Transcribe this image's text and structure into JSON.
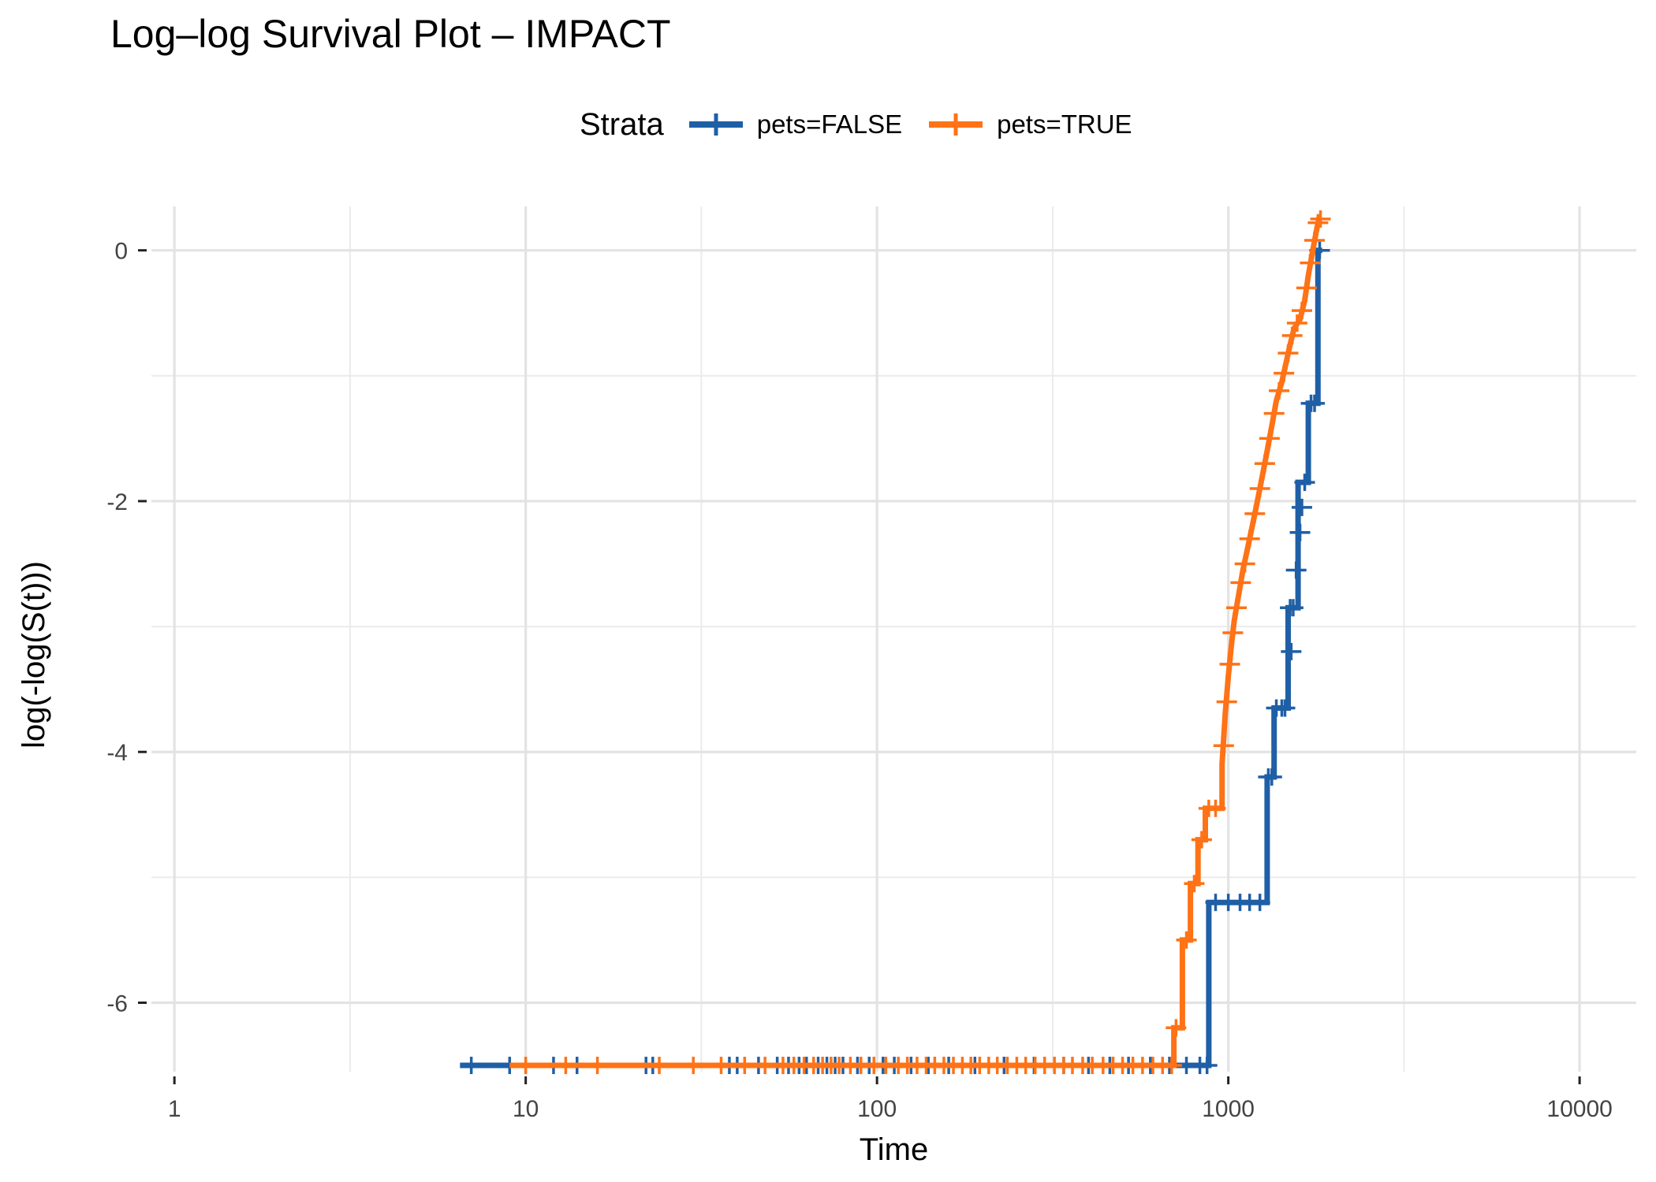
{
  "chart_data": {
    "type": "line",
    "title": "Log–log Survival Plot – IMPACT",
    "xlabel": "Time",
    "ylabel": "log(-log(S(t)))",
    "x_scale": "log10",
    "xlim": [
      0.86,
      14500
    ],
    "ylim": [
      -6.55,
      0.35
    ],
    "x_ticks": [
      1,
      10,
      100,
      1000,
      10000
    ],
    "x_tick_labels": [
      "1",
      "10",
      "100",
      "1000",
      "10000"
    ],
    "y_ticks": [
      -6,
      -4,
      -2,
      0
    ],
    "y_tick_labels": [
      "-6",
      "-4",
      "-2",
      "0"
    ],
    "grid": true,
    "legend": {
      "title": "Strata",
      "position": "top"
    },
    "series": [
      {
        "name": "pets=FALSE",
        "color": "#1F5FA6",
        "points": [
          [
            6.5,
            -6.5
          ],
          [
            880,
            -6.5
          ],
          [
            880,
            -5.2
          ],
          [
            1290,
            -5.2
          ],
          [
            1290,
            -4.2
          ],
          [
            1350,
            -4.2
          ],
          [
            1350,
            -3.65
          ],
          [
            1480,
            -3.65
          ],
          [
            1480,
            -2.85
          ],
          [
            1580,
            -2.85
          ],
          [
            1580,
            -1.85
          ],
          [
            1690,
            -1.85
          ],
          [
            1690,
            -1.22
          ],
          [
            1800,
            -1.22
          ],
          [
            1800,
            0.0
          ],
          [
            1850,
            0.0
          ]
        ],
        "censor_times": [
          7,
          9,
          12,
          14,
          22,
          23,
          38,
          40,
          46,
          52,
          56,
          60,
          63,
          68,
          72,
          76,
          80,
          88,
          95,
          104,
          112,
          125,
          140,
          160,
          190,
          230,
          280,
          340,
          400,
          460,
          520,
          600,
          680,
          760,
          830,
          870
        ],
        "censor_steps": [
          [
            920,
            -5.2
          ],
          [
            1000,
            -5.2
          ],
          [
            1080,
            -5.2
          ],
          [
            1150,
            -5.2
          ],
          [
            1230,
            -5.2
          ],
          [
            1300,
            -4.2
          ],
          [
            1330,
            -4.2
          ],
          [
            1370,
            -3.65
          ],
          [
            1420,
            -3.65
          ],
          [
            1450,
            -3.65
          ],
          [
            1500,
            -2.85
          ],
          [
            1510,
            -3.2
          ],
          [
            1530,
            -2.85
          ],
          [
            1560,
            -2.55
          ],
          [
            1600,
            -2.25
          ],
          [
            1620,
            -2.05
          ],
          [
            1650,
            -1.85
          ],
          [
            1720,
            -1.22
          ],
          [
            1760,
            -1.22
          ],
          [
            1820,
            0.0
          ]
        ]
      },
      {
        "name": "pets=TRUE",
        "color": "#FF7216",
        "points": [
          [
            9,
            -6.5
          ],
          [
            700,
            -6.5
          ],
          [
            700,
            -6.2
          ],
          [
            740,
            -6.2
          ],
          [
            740,
            -5.5
          ],
          [
            780,
            -5.5
          ],
          [
            780,
            -5.05
          ],
          [
            820,
            -5.05
          ],
          [
            820,
            -4.7
          ],
          [
            860,
            -4.7
          ],
          [
            860,
            -4.45
          ],
          [
            960,
            -4.45
          ],
          [
            960,
            -4.1
          ],
          [
            980,
            -3.7
          ],
          [
            1000,
            -3.4
          ],
          [
            1020,
            -3.15
          ],
          [
            1040,
            -2.95
          ],
          [
            1070,
            -2.75
          ],
          [
            1100,
            -2.55
          ],
          [
            1130,
            -2.4
          ],
          [
            1170,
            -2.2
          ],
          [
            1210,
            -2.0
          ],
          [
            1250,
            -1.8
          ],
          [
            1290,
            -1.6
          ],
          [
            1330,
            -1.4
          ],
          [
            1370,
            -1.2
          ],
          [
            1420,
            -1.05
          ],
          [
            1460,
            -0.9
          ],
          [
            1500,
            -0.75
          ],
          [
            1540,
            -0.62
          ],
          [
            1600,
            -0.55
          ],
          [
            1650,
            -0.4
          ],
          [
            1690,
            -0.2
          ],
          [
            1740,
            0.0
          ],
          [
            1780,
            0.15
          ],
          [
            1810,
            0.25
          ],
          [
            1840,
            0.25
          ]
        ],
        "censor_times": [
          10,
          13,
          16,
          24,
          30,
          36,
          42,
          48,
          54,
          58,
          62,
          66,
          70,
          74,
          78,
          84,
          90,
          98,
          106,
          115,
          122,
          130,
          138,
          146,
          155,
          165,
          175,
          185,
          196,
          208,
          220,
          235,
          250,
          265,
          282,
          300,
          320,
          340,
          360,
          385,
          410,
          440,
          470,
          500,
          535,
          570,
          610,
          650,
          690
        ],
        "censor_steps": [
          [
            710,
            -6.2
          ],
          [
            760,
            -5.5
          ],
          [
            800,
            -5.05
          ],
          [
            840,
            -4.7
          ],
          [
            880,
            -4.45
          ],
          [
            920,
            -4.45
          ],
          [
            970,
            -3.95
          ],
          [
            990,
            -3.6
          ],
          [
            1010,
            -3.3
          ],
          [
            1030,
            -3.05
          ],
          [
            1055,
            -2.85
          ],
          [
            1085,
            -2.65
          ],
          [
            1115,
            -2.5
          ],
          [
            1150,
            -2.3
          ],
          [
            1190,
            -2.1
          ],
          [
            1230,
            -1.9
          ],
          [
            1270,
            -1.7
          ],
          [
            1310,
            -1.5
          ],
          [
            1350,
            -1.3
          ],
          [
            1395,
            -1.12
          ],
          [
            1440,
            -0.98
          ],
          [
            1480,
            -0.82
          ],
          [
            1520,
            -0.68
          ],
          [
            1570,
            -0.58
          ],
          [
            1620,
            -0.48
          ],
          [
            1670,
            -0.3
          ],
          [
            1710,
            -0.1
          ],
          [
            1760,
            0.08
          ],
          [
            1800,
            0.22
          ],
          [
            1830,
            0.25
          ]
        ]
      }
    ]
  }
}
